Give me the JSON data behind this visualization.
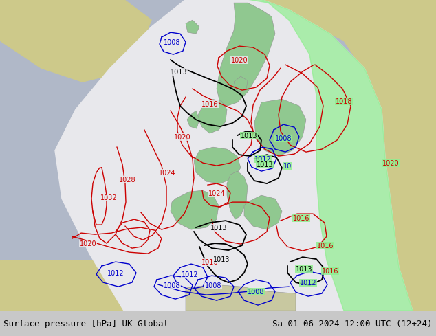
{
  "title_left": "Surface pressure [hPa] UK-Global",
  "title_right": "Sa 01-06-2024 12:00 UTC (12+24)",
  "ocean_color": "#b0b8c8",
  "land_outside_color": "#cdc98a",
  "land_inside_white_color": "#c8c8c8",
  "forecast_white_color": "#e8e8ec",
  "forecast_green_color": "#90ee90",
  "land_green_color": "#a0c890",
  "fig_width": 6.34,
  "fig_height": 4.9,
  "dpi": 100,
  "bottom_bar_color": "#c8c8c8",
  "text_color": "#000000",
  "font_size_title": 9,
  "isobar_black_color": "#000000",
  "isobar_red_color": "#cc0000",
  "isobar_blue_color": "#0000cc",
  "isobar_label_fontsize": 7
}
